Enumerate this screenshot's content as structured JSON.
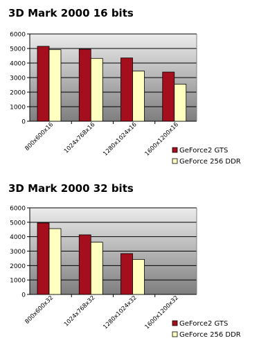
{
  "chart_data": [
    {
      "type": "bar",
      "title": "3D Mark 2000 16 bits",
      "categories": [
        "800x600x16",
        "1024x768x16",
        "1280x1024x16",
        "1600x1200x16"
      ],
      "series": [
        {
          "name": "GeForce2 GTS",
          "color": "#a50e1c",
          "values": [
            5150,
            4950,
            4350,
            3380
          ]
        },
        {
          "name": "GeForce 256 DDR",
          "color": "#ffffc0",
          "values": [
            4920,
            4320,
            3450,
            2550
          ]
        }
      ],
      "ylim": [
        0,
        6000
      ],
      "yticks": [
        "0",
        "1000",
        "2000",
        "3000",
        "4000",
        "5000",
        "6000"
      ],
      "grid": true,
      "legend": "bottom-right"
    },
    {
      "type": "bar",
      "title": "3D Mark 2000 32 bits",
      "categories": [
        "800x600x32",
        "1024x768x32",
        "1280x1024x32",
        "1600x1200x32"
      ],
      "series": [
        {
          "name": "GeForce2 GTS",
          "color": "#a50e1c",
          "values": [
            4950,
            4130,
            2830,
            null
          ]
        },
        {
          "name": "GeForce 256 DDR",
          "color": "#ffffc0",
          "values": [
            4560,
            3620,
            2430,
            null
          ]
        }
      ],
      "ylim": [
        0,
        6000
      ],
      "yticks": [
        "0",
        "1000",
        "2000",
        "3000",
        "4000",
        "5000",
        "6000"
      ],
      "grid": true,
      "legend": "bottom-right"
    }
  ]
}
